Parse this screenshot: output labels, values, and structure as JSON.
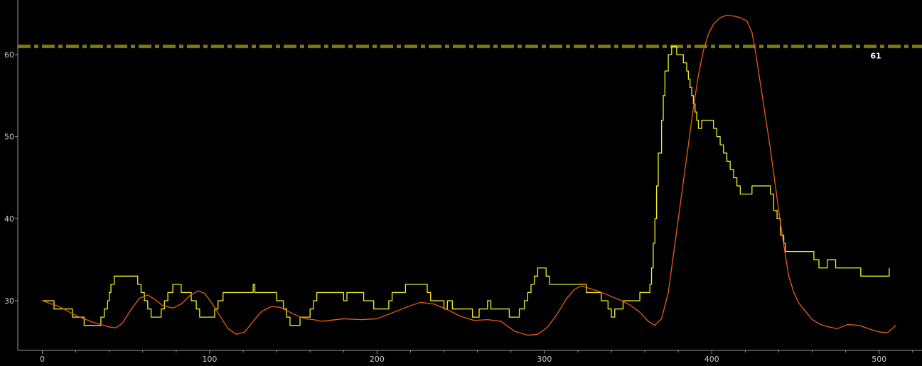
{
  "chart_data": {
    "type": "line",
    "xlim": [
      -12,
      525
    ],
    "ylim": [
      24,
      65
    ],
    "x_ticks": [
      0,
      100,
      200,
      300,
      400,
      500
    ],
    "x_minor_step": 20,
    "y_ticks": [
      30,
      40,
      50,
      60
    ],
    "grid": false,
    "reference_line": {
      "value": 61,
      "label": "61",
      "color": "#7a7a10",
      "style": "dash-dot"
    },
    "series": [
      {
        "color": "#f0f020",
        "step": true,
        "points": [
          [
            0,
            30
          ],
          [
            5,
            30
          ],
          [
            7,
            29
          ],
          [
            16,
            29
          ],
          [
            18,
            28
          ],
          [
            23,
            28
          ],
          [
            25,
            27
          ],
          [
            33,
            27
          ],
          [
            35,
            28
          ],
          [
            37,
            29
          ],
          [
            39,
            30
          ],
          [
            40,
            31
          ],
          [
            41,
            32
          ],
          [
            43,
            33
          ],
          [
            55,
            33
          ],
          [
            57,
            32
          ],
          [
            59,
            31
          ],
          [
            61,
            30
          ],
          [
            63,
            29
          ],
          [
            65,
            28
          ],
          [
            69,
            28
          ],
          [
            71,
            29
          ],
          [
            73,
            30
          ],
          [
            75,
            31
          ],
          [
            78,
            32
          ],
          [
            81,
            32
          ],
          [
            83,
            31
          ],
          [
            87,
            31
          ],
          [
            89,
            30
          ],
          [
            92,
            29
          ],
          [
            94,
            28
          ],
          [
            101,
            28
          ],
          [
            103,
            29
          ],
          [
            105,
            30
          ],
          [
            108,
            31
          ],
          [
            125,
            31
          ],
          [
            126,
            32
          ],
          [
            127,
            31
          ],
          [
            138,
            31
          ],
          [
            140,
            30
          ],
          [
            144,
            29
          ],
          [
            146,
            28
          ],
          [
            148,
            27
          ],
          [
            152,
            27
          ],
          [
            154,
            28
          ],
          [
            158,
            28
          ],
          [
            160,
            29
          ],
          [
            162,
            30
          ],
          [
            164,
            31
          ],
          [
            178,
            31
          ],
          [
            180,
            30
          ],
          [
            182,
            31
          ],
          [
            190,
            31
          ],
          [
            192,
            30
          ],
          [
            196,
            30
          ],
          [
            198,
            29
          ],
          [
            205,
            29
          ],
          [
            207,
            30
          ],
          [
            209,
            31
          ],
          [
            215,
            31
          ],
          [
            217,
            32
          ],
          [
            227,
            32
          ],
          [
            230,
            31
          ],
          [
            232,
            30
          ],
          [
            238,
            30
          ],
          [
            240,
            29
          ],
          [
            242,
            30
          ],
          [
            243,
            30
          ],
          [
            245,
            29
          ],
          [
            255,
            29
          ],
          [
            257,
            28
          ],
          [
            259,
            28
          ],
          [
            261,
            29
          ],
          [
            264,
            29
          ],
          [
            266,
            30
          ],
          [
            268,
            29
          ],
          [
            277,
            29
          ],
          [
            279,
            28
          ],
          [
            283,
            28
          ],
          [
            285,
            29
          ],
          [
            288,
            30
          ],
          [
            290,
            31
          ],
          [
            292,
            32
          ],
          [
            294,
            33
          ],
          [
            296,
            34
          ],
          [
            299,
            34
          ],
          [
            301,
            33
          ],
          [
            303,
            32
          ],
          [
            323,
            32
          ],
          [
            325,
            31
          ],
          [
            330,
            31
          ],
          [
            334,
            30
          ],
          [
            338,
            29
          ],
          [
            340,
            28
          ],
          [
            342,
            29
          ],
          [
            345,
            29
          ],
          [
            347,
            30
          ],
          [
            354,
            30
          ],
          [
            357,
            31
          ],
          [
            360,
            31
          ],
          [
            363,
            32
          ],
          [
            364,
            34
          ],
          [
            365,
            37
          ],
          [
            366,
            40
          ],
          [
            367,
            44
          ],
          [
            368,
            48
          ],
          [
            370,
            52
          ],
          [
            371,
            55
          ],
          [
            372,
            58
          ],
          [
            374,
            60
          ],
          [
            376,
            61
          ],
          [
            378,
            61
          ],
          [
            379,
            60
          ],
          [
            381,
            60
          ],
          [
            383,
            59
          ],
          [
            385,
            58
          ],
          [
            386,
            57
          ],
          [
            387,
            56
          ],
          [
            388,
            55
          ],
          [
            389,
            54
          ],
          [
            390,
            53
          ],
          [
            391,
            52
          ],
          [
            392,
            51
          ],
          [
            394,
            52
          ],
          [
            400,
            52
          ],
          [
            401,
            51
          ],
          [
            403,
            50
          ],
          [
            405,
            49
          ],
          [
            407,
            48
          ],
          [
            409,
            47
          ],
          [
            411,
            46
          ],
          [
            413,
            45
          ],
          [
            415,
            44
          ],
          [
            417,
            43
          ],
          [
            422,
            43
          ],
          [
            424,
            44
          ],
          [
            434,
            44
          ],
          [
            435,
            43
          ],
          [
            437,
            41
          ],
          [
            439,
            40
          ],
          [
            441,
            38
          ],
          [
            443,
            37
          ],
          [
            444,
            36
          ],
          [
            458,
            36
          ],
          [
            461,
            35
          ],
          [
            464,
            34
          ],
          [
            467,
            34
          ],
          [
            469,
            35
          ],
          [
            472,
            35
          ],
          [
            474,
            34
          ],
          [
            487,
            34
          ],
          [
            489,
            33
          ],
          [
            504,
            33
          ],
          [
            506,
            34
          ]
        ]
      },
      {
        "color": "#e85d1a",
        "step": false,
        "points": [
          [
            0,
            30
          ],
          [
            10,
            29.3
          ],
          [
            20,
            28.2
          ],
          [
            30,
            27.4
          ],
          [
            40,
            26.8
          ],
          [
            44,
            26.7
          ],
          [
            48,
            27.3
          ],
          [
            52,
            28.6
          ],
          [
            58,
            30.3
          ],
          [
            63,
            30.7
          ],
          [
            67,
            30.2
          ],
          [
            72,
            29.4
          ],
          [
            78,
            29.1
          ],
          [
            83,
            29.6
          ],
          [
            88,
            30.6
          ],
          [
            93,
            31.2
          ],
          [
            97,
            30.9
          ],
          [
            101,
            29.8
          ],
          [
            106,
            28.2
          ],
          [
            111,
            26.6
          ],
          [
            116,
            25.9
          ],
          [
            121,
            26.2
          ],
          [
            126,
            27.5
          ],
          [
            131,
            28.7
          ],
          [
            137,
            29.3
          ],
          [
            142,
            29.2
          ],
          [
            147,
            28.7
          ],
          [
            152,
            28.2
          ],
          [
            157,
            27.8
          ],
          [
            162,
            27.7
          ],
          [
            167,
            27.5
          ],
          [
            180,
            27.8
          ],
          [
            190,
            27.7
          ],
          [
            200,
            27.8
          ],
          [
            210,
            28.6
          ],
          [
            220,
            29.4
          ],
          [
            226,
            29.8
          ],
          [
            234,
            29.6
          ],
          [
            242,
            28.9
          ],
          [
            250,
            28.1
          ],
          [
            258,
            27.6
          ],
          [
            266,
            27.7
          ],
          [
            274,
            27.5
          ],
          [
            282,
            26.3
          ],
          [
            290,
            25.8
          ],
          [
            296,
            25.9
          ],
          [
            302,
            26.8
          ],
          [
            308,
            28.5
          ],
          [
            313,
            30.2
          ],
          [
            318,
            31.4
          ],
          [
            322,
            31.8
          ],
          [
            327,
            31.5
          ],
          [
            333,
            31.1
          ],
          [
            339,
            30.6
          ],
          [
            345,
            30.1
          ],
          [
            351,
            29.5
          ],
          [
            357,
            28.6
          ],
          [
            362,
            27.5
          ],
          [
            366,
            27
          ],
          [
            370,
            27.8
          ],
          [
            374,
            31
          ],
          [
            377,
            35.5
          ],
          [
            380,
            40
          ],
          [
            383,
            44.5
          ],
          [
            386,
            49
          ],
          [
            389,
            53.5
          ],
          [
            392,
            57.5
          ],
          [
            395,
            60.5
          ],
          [
            398,
            62.5
          ],
          [
            401,
            63.7
          ],
          [
            405,
            64.5
          ],
          [
            409,
            64.8
          ],
          [
            413,
            64.7
          ],
          [
            417,
            64.5
          ],
          [
            421,
            64.1
          ],
          [
            424,
            62.7
          ],
          [
            426,
            60.5
          ],
          [
            429,
            56.5
          ],
          [
            432,
            52.5
          ],
          [
            435,
            48.5
          ],
          [
            438,
            44
          ],
          [
            441,
            39.5
          ],
          [
            444,
            35.5
          ],
          [
            446,
            33
          ],
          [
            449,
            31
          ],
          [
            452,
            29.7
          ],
          [
            456,
            28.7
          ],
          [
            460,
            27.7
          ],
          [
            465,
            27.1
          ],
          [
            470,
            26.8
          ],
          [
            475,
            26.6
          ],
          [
            481,
            27.1
          ],
          [
            488,
            27
          ],
          [
            495,
            26.5
          ],
          [
            500,
            26.2
          ],
          [
            505,
            26.1
          ],
          [
            510,
            27
          ]
        ]
      }
    ]
  }
}
